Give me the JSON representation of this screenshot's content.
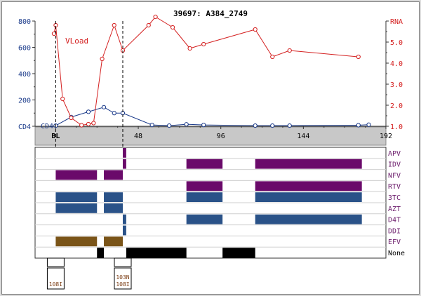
{
  "title": "39697: A384_2749",
  "colors": {
    "cd4": "#1a3a8a",
    "rna": "#d42020",
    "drug_label": "#6a1a6a",
    "bar_purple": "#6a0a6a",
    "bar_blue": "#2a5288",
    "bar_brown": "#7a5418",
    "bar_black": "#000000"
  },
  "chart_data": {
    "type": "line",
    "title": "39697: A384_2749",
    "x_ticks": [
      {
        "value": 0,
        "label": "BL"
      },
      {
        "value": 48,
        "label": "48"
      },
      {
        "value": 96,
        "label": "96"
      },
      {
        "value": 144,
        "label": "144"
      },
      {
        "value": 192,
        "label": "192"
      }
    ],
    "xlim": [
      -12,
      192
    ],
    "y_left": {
      "ticks": [
        "800",
        "600",
        "400",
        "200",
        "CD4"
      ],
      "ylim": [
        0,
        800
      ]
    },
    "y_right": {
      "ticks": [
        "RNA",
        "5.0",
        "4.0",
        "3.0",
        "2.0",
        "1.0"
      ],
      "ylim": [
        1.0,
        6.0
      ]
    },
    "series": [
      {
        "name": "CD4",
        "axis": "left",
        "x": [
          0,
          9,
          19,
          28,
          34,
          39,
          56,
          66,
          76,
          86,
          116,
          126,
          136,
          176,
          182
        ],
        "y": [
          5,
          70,
          110,
          145,
          100,
          100,
          10,
          5,
          15,
          10,
          5,
          5,
          5,
          8,
          12
        ]
      },
      {
        "name": "VLoad",
        "axis": "right",
        "x": [
          -1,
          0,
          4,
          9,
          15,
          19,
          22,
          27,
          34,
          39,
          54,
          58,
          68,
          78,
          86,
          116,
          126,
          136,
          176
        ],
        "y": [
          5.4,
          5.8,
          2.3,
          1.4,
          1.05,
          1.1,
          1.15,
          4.2,
          5.8,
          4.6,
          5.8,
          6.2,
          5.7,
          4.7,
          4.9,
          5.6,
          4.3,
          4.6,
          4.3
        ]
      }
    ],
    "series_label": "VLoad",
    "cd4_label": "CD4",
    "baseline_x": 0,
    "marker_x": 39
  },
  "drug_chart": {
    "rows": [
      {
        "name": "APV",
        "bars": [
          [
            39,
            41
          ]
        ],
        "color": "purple"
      },
      {
        "name": "IDV",
        "bars": [
          [
            39,
            41
          ],
          [
            76,
            97
          ],
          [
            116,
            178
          ]
        ],
        "color": "purple"
      },
      {
        "name": "NFV",
        "bars": [
          [
            0,
            24
          ],
          [
            28,
            39
          ]
        ],
        "color": "purple"
      },
      {
        "name": "RTV",
        "bars": [
          [
            76,
            97
          ],
          [
            116,
            178
          ]
        ],
        "color": "purple"
      },
      {
        "name": "3TC",
        "bars": [
          [
            0,
            24
          ],
          [
            28,
            39
          ],
          [
            76,
            97
          ],
          [
            116,
            178
          ]
        ],
        "color": "blue"
      },
      {
        "name": "AZT",
        "bars": [
          [
            0,
            24
          ],
          [
            28,
            39
          ]
        ],
        "color": "blue"
      },
      {
        "name": "D4T",
        "bars": [
          [
            39,
            41
          ],
          [
            76,
            97
          ],
          [
            116,
            178
          ]
        ],
        "color": "blue"
      },
      {
        "name": "DDI",
        "bars": [
          [
            39,
            41
          ]
        ],
        "color": "blue"
      },
      {
        "name": "EFV",
        "bars": [
          [
            0,
            24
          ],
          [
            28,
            39
          ]
        ],
        "color": "brown"
      },
      {
        "name": "None",
        "bars": [
          [
            24,
            28
          ],
          [
            41,
            76
          ],
          [
            97,
            116
          ]
        ],
        "color": "black"
      }
    ]
  },
  "genotypes": [
    {
      "x": 0,
      "mutations": [
        "108I"
      ]
    },
    {
      "x": 39,
      "mutations": [
        "103N",
        "108I"
      ]
    }
  ]
}
